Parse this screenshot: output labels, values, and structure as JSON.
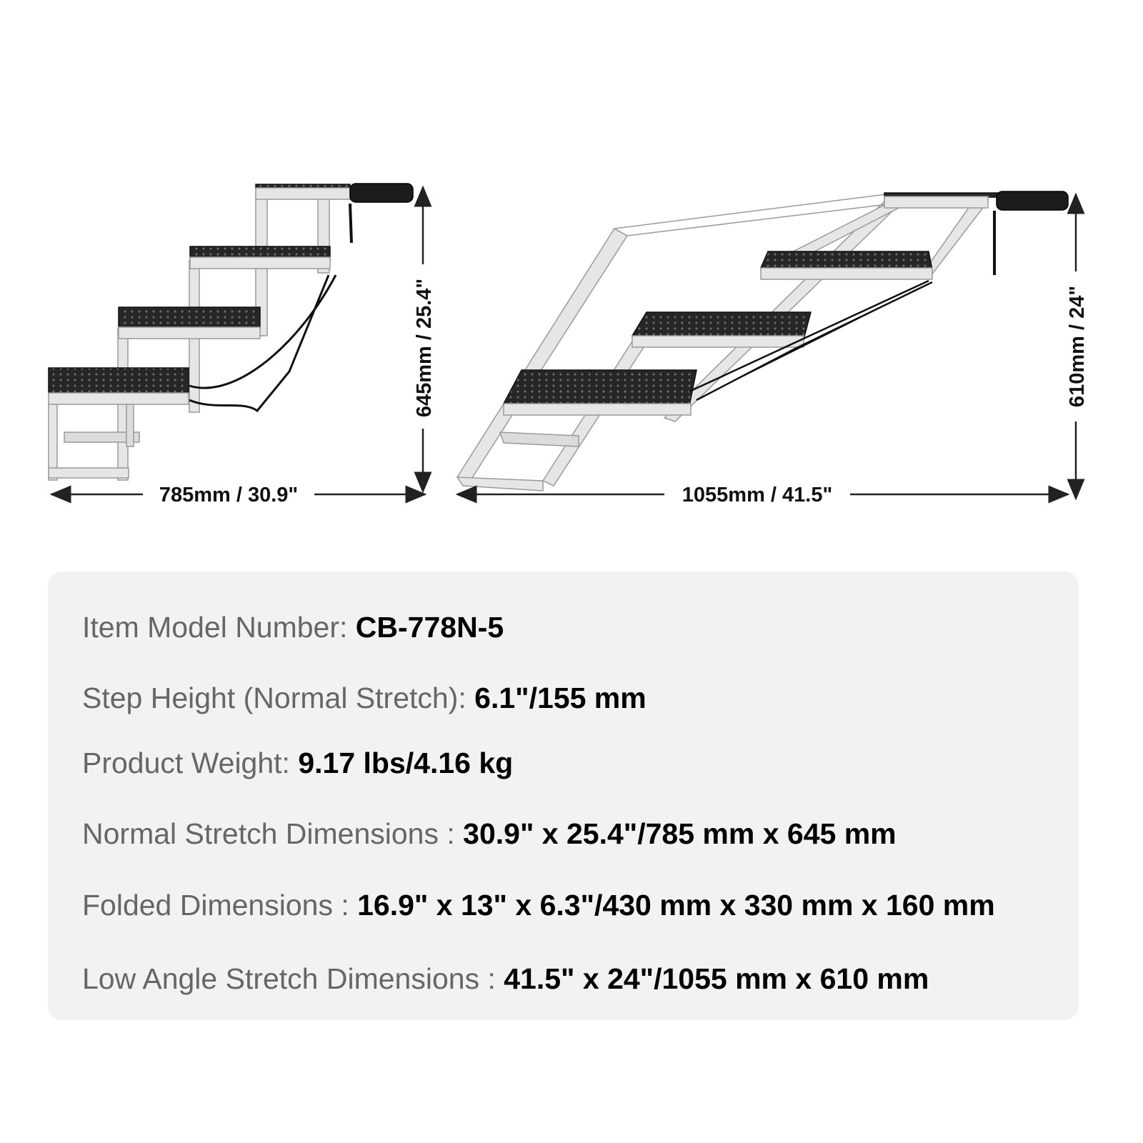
{
  "dimensions": {
    "normal": {
      "width_label": "785mm / 30.9\"",
      "height_label": "645mm / 25.4\""
    },
    "low_angle": {
      "width_label": "1055mm / 41.5\"",
      "height_label": "610mm / 24\""
    }
  },
  "specs": [
    {
      "label": "Item Model Number: ",
      "value": "CB-778N-5"
    },
    {
      "label": "Step Height (Normal Stretch): ",
      "value": "6.1\"/155 mm"
    },
    {
      "label": "Product Weight: ",
      "value": "9.17 lbs/4.16 kg"
    },
    {
      "label": "Normal Stretch Dimensions : ",
      "value": "30.9\" x 25.4\"/785 mm x 645 mm"
    },
    {
      "label": "Folded Dimensions : ",
      "value": "16.9\" x 13\" x 6.3\"/430 mm x 330 mm x 160 mm"
    },
    {
      "label": "Low Angle Stretch Dimensions : ",
      "value": "41.5\" x 24\"/1055 mm x 610 mm"
    }
  ],
  "colors": {
    "frame": "#e4e4e4",
    "tread": "#2a2a2a",
    "panel": "#f2f2f2",
    "label": "#666666"
  }
}
